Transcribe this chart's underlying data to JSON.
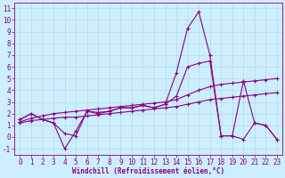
{
  "xlabel": "Windchill (Refroidissement éolien,°C)",
  "bg_color": "#cceeff",
  "line_color": "#880088",
  "xlim": [
    -0.5,
    23.5
  ],
  "ylim": [
    -1.5,
    11.5
  ],
  "yticks": [
    -1,
    0,
    1,
    2,
    3,
    4,
    5,
    6,
    7,
    8,
    9,
    10,
    11
  ],
  "xticks": [
    0,
    1,
    2,
    3,
    4,
    5,
    6,
    7,
    8,
    9,
    10,
    11,
    12,
    13,
    14,
    15,
    16,
    17,
    18,
    19,
    20,
    21,
    22,
    23
  ],
  "s1_y": [
    1.5,
    2.0,
    1.5,
    1.2,
    -1.0,
    0.5,
    2.2,
    2.0,
    2.2,
    2.5,
    2.5,
    2.7,
    2.5,
    2.8,
    5.5,
    9.3,
    10.7,
    7.0,
    0.1,
    0.1,
    -0.2,
    1.2,
    1.0,
    -0.2
  ],
  "s2_y": [
    1.5,
    2.0,
    1.5,
    1.2,
    0.3,
    0.1,
    2.2,
    2.1,
    2.2,
    2.5,
    2.5,
    2.7,
    2.5,
    2.8,
    3.5,
    6.0,
    6.3,
    6.5,
    0.1,
    0.1,
    4.8,
    1.2,
    1.0,
    -0.2
  ],
  "s3_y": [
    1.3,
    1.6,
    1.8,
    2.0,
    2.1,
    2.2,
    2.3,
    2.4,
    2.5,
    2.6,
    2.7,
    2.8,
    2.9,
    3.0,
    3.2,
    3.6,
    4.0,
    4.3,
    4.5,
    4.6,
    4.7,
    4.8,
    4.9,
    5.0
  ],
  "s4_y": [
    1.2,
    1.4,
    1.5,
    1.6,
    1.7,
    1.7,
    1.8,
    1.9,
    2.0,
    2.1,
    2.2,
    2.3,
    2.4,
    2.5,
    2.6,
    2.8,
    3.0,
    3.2,
    3.3,
    3.4,
    3.5,
    3.6,
    3.7,
    3.8
  ]
}
